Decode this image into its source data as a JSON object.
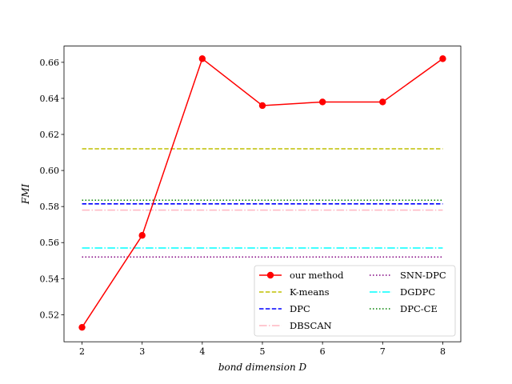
{
  "chart_data": {
    "type": "line",
    "title": "",
    "xlabel": "bond dimension D",
    "ylabel": "FMI",
    "x": [
      2,
      3,
      4,
      5,
      6,
      7,
      8
    ],
    "xlim": [
      1.7,
      8.3
    ],
    "ylim": [
      0.505,
      0.669
    ],
    "xticks": [
      "2",
      "3",
      "4",
      "5",
      "6",
      "7",
      "8"
    ],
    "yticks": [
      "0.52",
      "0.54",
      "0.56",
      "0.58",
      "0.60",
      "0.62",
      "0.64",
      "0.66"
    ],
    "grid": false,
    "legend_position": "lower-right",
    "series": [
      {
        "name": "our method",
        "values": [
          0.513,
          0.564,
          0.662,
          0.636,
          0.638,
          0.638,
          0.662
        ],
        "color": "#ff0000",
        "style": "solid",
        "marker": "circle"
      },
      {
        "name": "K-means",
        "value": 0.612,
        "color": "#bfbf00",
        "style": "dashed"
      },
      {
        "name": "DPC",
        "value": 0.5815,
        "color": "#0000ff",
        "style": "dashed-bold"
      },
      {
        "name": "DBSCAN",
        "value": 0.578,
        "color": "#ffb6c1",
        "style": "dashdot"
      },
      {
        "name": "SNN-DPC",
        "value": 0.552,
        "color": "#800080",
        "style": "dotted"
      },
      {
        "name": "DGDPC",
        "value": 0.557,
        "color": "#00ffff",
        "style": "dashdot"
      },
      {
        "name": "DPC-CE",
        "value": 0.5835,
        "color": "#008000",
        "style": "dotted"
      }
    ]
  }
}
